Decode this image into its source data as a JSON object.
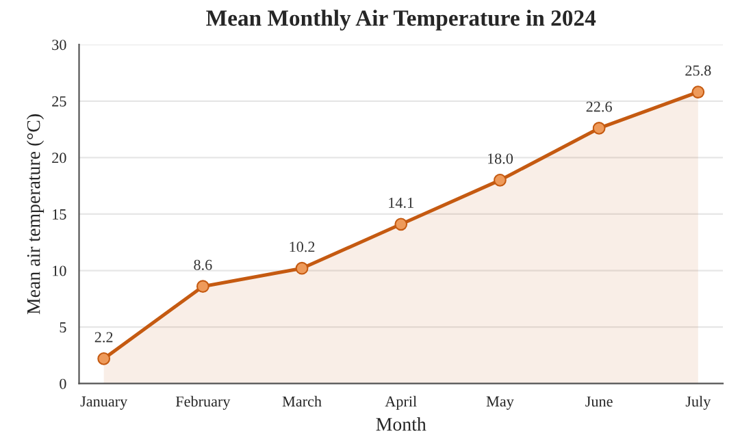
{
  "chart_data": {
    "type": "area",
    "title": "Mean Monthly Air Temperature in 2024",
    "xlabel": "Month",
    "ylabel": "Mean air temperature (°C)",
    "categories": [
      "January",
      "February",
      "March",
      "April",
      "May",
      "June",
      "July"
    ],
    "series": [
      {
        "color": "#c55a11",
        "values": [
          2.2,
          8.6,
          10.2,
          14.1,
          18.0,
          22.6,
          25.8
        ],
        "value_labels": [
          "2.2",
          "8.6",
          "10.2",
          "14.1",
          "18.0",
          "22.6",
          "25.8"
        ]
      }
    ],
    "ylim": [
      0,
      30
    ],
    "yticks": [
      0,
      5,
      10,
      15,
      20,
      25,
      30
    ],
    "grid": "y",
    "marker": "circle",
    "line_style": "solid"
  }
}
